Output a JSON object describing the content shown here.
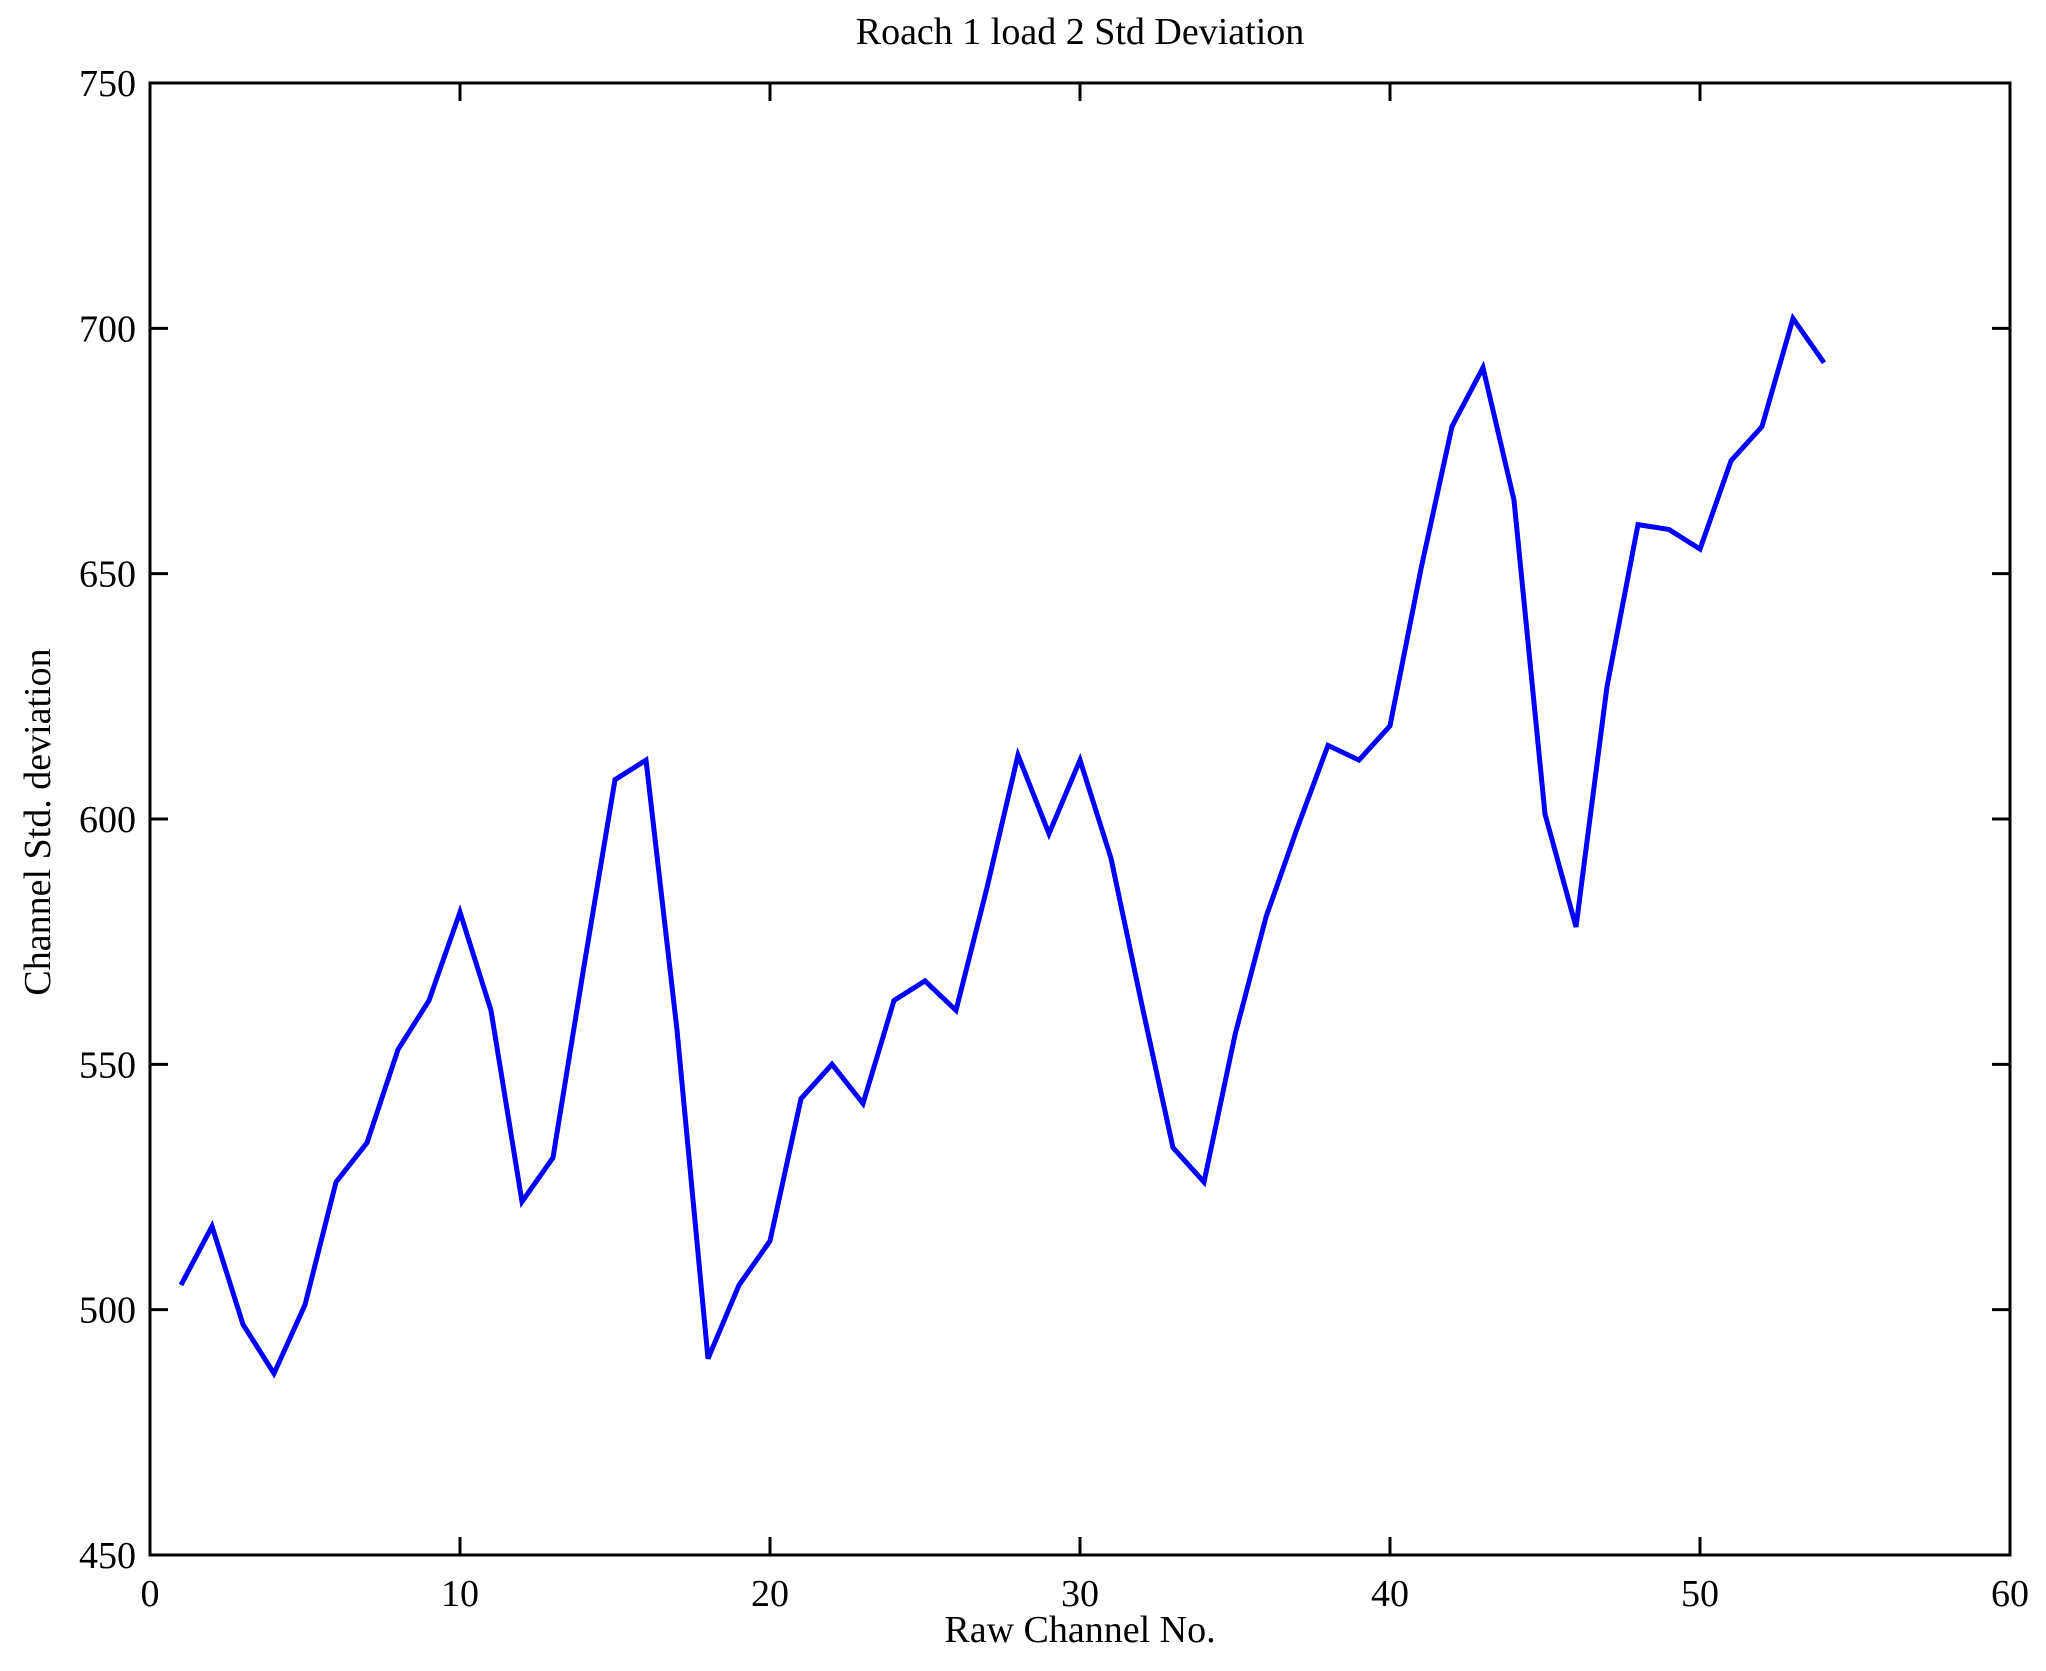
{
  "chart_data": {
    "type": "line",
    "title": "Roach 1 load 2 Std Deviation",
    "xlabel": "Raw Channel No.",
    "ylabel": "Channel Std. deviation",
    "x": [
      1,
      2,
      3,
      4,
      5,
      6,
      7,
      8,
      9,
      10,
      11,
      12,
      13,
      14,
      15,
      16,
      17,
      18,
      19,
      20,
      21,
      22,
      23,
      24,
      25,
      26,
      27,
      28,
      29,
      30,
      31,
      32,
      33,
      34,
      35,
      36,
      37,
      38,
      39,
      40,
      41,
      42,
      43,
      44,
      45,
      46,
      47,
      48,
      49,
      50,
      51,
      52,
      53,
      54
    ],
    "values": [
      505,
      517,
      497,
      487,
      501,
      526,
      534,
      553,
      563,
      581,
      561,
      522,
      531,
      570,
      608,
      612,
      557,
      490,
      505,
      514,
      543,
      550,
      542,
      563,
      567,
      561,
      586,
      613,
      597,
      612,
      592,
      562,
      533,
      526,
      556,
      580,
      598,
      615,
      612,
      619,
      651,
      680,
      692,
      665,
      601,
      578,
      627,
      660,
      659,
      655,
      673,
      680,
      702,
      693
    ],
    "xlim": [
      0,
      60
    ],
    "ylim": [
      450,
      750
    ],
    "xticks": [
      0,
      10,
      20,
      30,
      40,
      50,
      60
    ],
    "yticks": [
      450,
      500,
      550,
      600,
      650,
      700,
      750
    ],
    "grid": false,
    "legend": null,
    "line_color": "#0000ff",
    "axis_color": "#000000",
    "background_color": "#ffffff"
  }
}
